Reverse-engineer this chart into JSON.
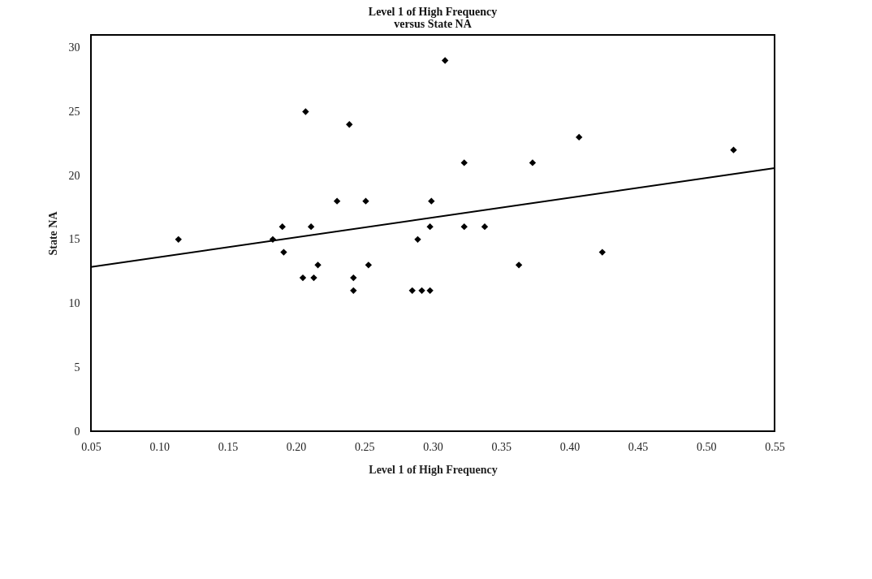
{
  "chart_data": {
    "type": "scatter",
    "title": "Level 1 of High Frequency\nversus State NA",
    "xlabel": "Level 1 of High Frequency",
    "ylabel": "State NA",
    "xlim": [
      0.05,
      0.55
    ],
    "xticks": [
      {
        "value": 0.05,
        "label": "0.05"
      },
      {
        "value": 0.1,
        "label": "0.10"
      },
      {
        "value": 0.15,
        "label": "0.15"
      },
      {
        "value": 0.2,
        "label": "0.20"
      },
      {
        "value": 0.25,
        "label": "0.25"
      },
      {
        "value": 0.3,
        "label": "0.30"
      },
      {
        "value": 0.35,
        "label": "0.35"
      },
      {
        "value": 0.4,
        "label": "0.40"
      },
      {
        "value": 0.45,
        "label": "0.45"
      },
      {
        "value": 0.5,
        "label": "0.50"
      },
      {
        "value": 0.55,
        "label": "0.55"
      }
    ],
    "ylim": [
      0,
      31
    ],
    "yticks": [
      0,
      5,
      10,
      15,
      20,
      25,
      30
    ],
    "grid": false,
    "marker": "diamond",
    "series": [
      {
        "color": "#000000",
        "x": [
          0.114,
          0.183,
          0.19,
          0.191,
          0.207,
          0.205,
          0.211,
          0.213,
          0.216,
          0.23,
          0.239,
          0.242,
          0.242,
          0.251,
          0.253,
          0.285,
          0.289,
          0.292,
          0.298,
          0.298,
          0.299,
          0.309,
          0.323,
          0.323,
          0.338,
          0.363,
          0.373,
          0.407,
          0.424,
          0.52
        ],
        "values": [
          15,
          15,
          16,
          14,
          25,
          12,
          16,
          12,
          13,
          18,
          24,
          12,
          11,
          18,
          13,
          11,
          15,
          11,
          11,
          16,
          18,
          29,
          21,
          16,
          16,
          13,
          21,
          23,
          14,
          22
        ]
      },
      {
        "type": "line",
        "marker": "none",
        "color": "#000000",
        "x": [
          0.05,
          0.55
        ],
        "values": [
          12.85,
          20.58
        ]
      }
    ]
  }
}
